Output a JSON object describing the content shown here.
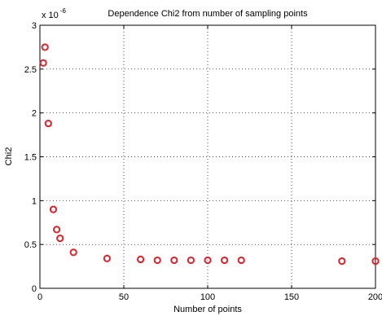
{
  "chart_data": {
    "type": "scatter",
    "title": "Dependence Chi2 from number of sampling points",
    "xlabel": "Number of points",
    "ylabel": "Chi2",
    "xlim": [
      0,
      200
    ],
    "ylim": [
      0,
      3
    ],
    "xticks": [
      0,
      50,
      100,
      150,
      200
    ],
    "yticks": [
      0,
      0.5,
      1,
      1.5,
      2,
      2.5,
      3
    ],
    "xtick_labels": [
      "0",
      "50",
      "100",
      "150",
      "200"
    ],
    "ytick_labels": [
      "0",
      "0.5",
      "1",
      "1.5",
      "2",
      "2.5",
      "3"
    ],
    "y_exponent_base": "x 10",
    "y_exponent_power": "-6",
    "grid": true,
    "marker": "circle",
    "marker_color": "#e0202a",
    "series": [
      {
        "x": [
          2,
          3,
          5,
          8,
          10,
          12,
          20,
          40,
          60,
          70,
          80,
          90,
          100,
          110,
          120,
          180,
          200
        ],
        "values": [
          2.57,
          2.75,
          1.88,
          0.9,
          0.67,
          0.57,
          0.41,
          0.34,
          0.33,
          0.32,
          0.32,
          0.32,
          0.32,
          0.32,
          0.32,
          0.31,
          0.31
        ]
      }
    ]
  }
}
